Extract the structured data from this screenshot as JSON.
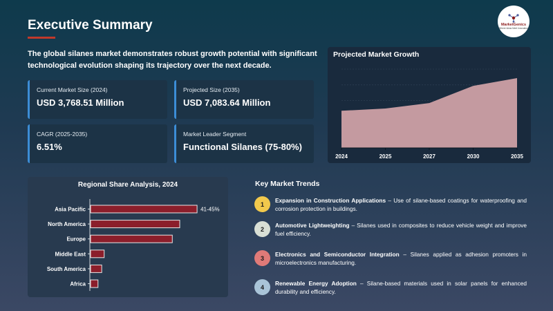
{
  "title": "Executive Summary",
  "logo": {
    "brand": "MarketGenics",
    "tagline": "Where Ideas Meet Innovation",
    "icon": "molecule-icon"
  },
  "intro": "The global silanes market demonstrates robust growth potential with significant technological evolution shaping its trajectory over the next decade.",
  "cards": [
    {
      "label": "Current Market Size (2024)",
      "value": "USD 3,768.51 Million"
    },
    {
      "label": "Projected Size (2035)",
      "value": "USD 7,083.64 Million"
    },
    {
      "label": "CAGR (2025-2035)",
      "value": "6.51%"
    },
    {
      "label": "Market Leader Segment",
      "value": "Functional Silanes (75-80%)"
    }
  ],
  "colors": {
    "accent": "#c0392b",
    "card_border": "#3c8dd6",
    "area_fill": "#c49aa0",
    "bar_fill": "#8b1e2b",
    "trend_1": "#f2c94c",
    "trend_2": "#d9dfd5",
    "trend_3": "#e07a78",
    "trend_4": "#a9c4d8"
  },
  "growth_chart": {
    "title": "Projected Market Growth",
    "chart_data": {
      "type": "area",
      "x": [
        "2024",
        "2025",
        "2027",
        "2030",
        "2035"
      ],
      "values": [
        3768.51,
        4000,
        4550,
        6300,
        7083.64
      ],
      "ylim": [
        0,
        8000
      ],
      "grid": true
    }
  },
  "regional_chart": {
    "title": "Regional Share Analysis, 2024",
    "chart_data": {
      "type": "bar",
      "orientation": "horizontal",
      "categories": [
        "Asia Pacific",
        "North America",
        "Europe",
        "Middle East",
        "South America",
        "Africa"
      ],
      "values": [
        43,
        36,
        33,
        5.5,
        4.5,
        3
      ],
      "xlim": [
        0,
        60
      ],
      "data_labels": [
        "41-45%",
        "",
        "",
        "",
        "",
        ""
      ]
    }
  },
  "trends": {
    "title": "Key Market Trends",
    "items": [
      {
        "num": "1",
        "heading": "Expansion in Construction Applications",
        "desc": " – Use of silane-based coatings for waterproofing and corrosion protection in buildings."
      },
      {
        "num": "2",
        "heading": "Automotive Lightweighting",
        "desc": " – Silanes used in composites to reduce vehicle weight and improve fuel efficiency."
      },
      {
        "num": "3",
        "heading": "Electronics and Semiconductor Integration",
        "desc": " – Silanes applied as adhesion promoters in microelectronics manufacturing."
      },
      {
        "num": "4",
        "heading": "Renewable Energy Adoption",
        "desc": " – Silane-based materials used in solar panels for enhanced durability and efficiency."
      }
    ]
  }
}
